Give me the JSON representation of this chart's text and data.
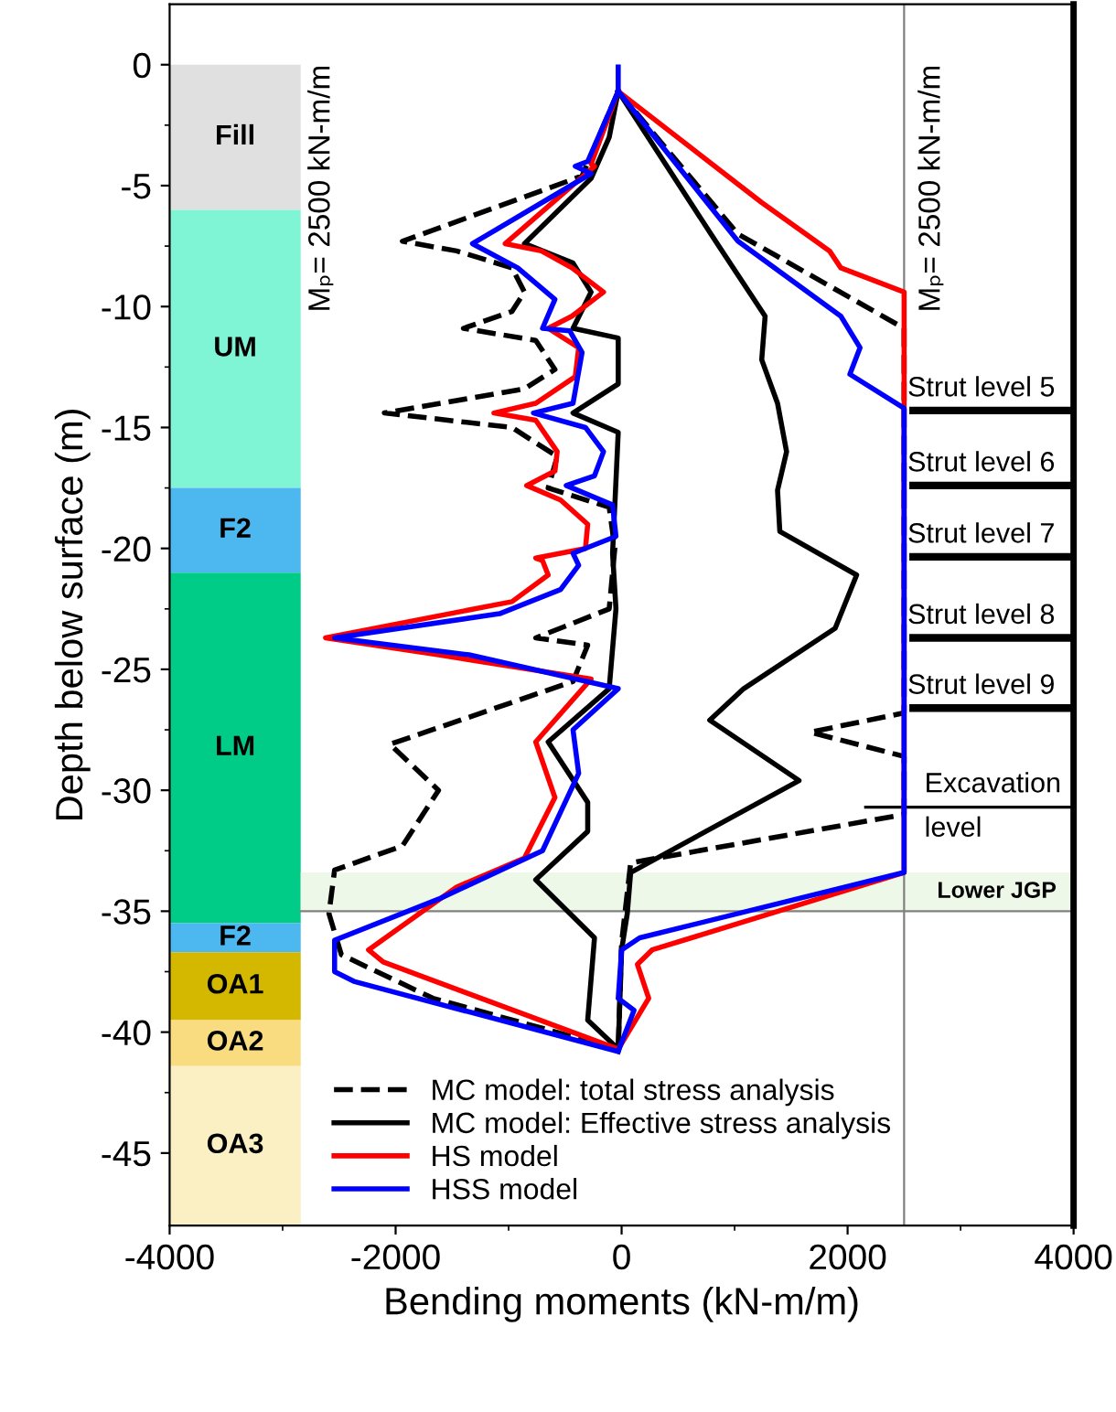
{
  "chart_data": {
    "type": "line",
    "xlabel": "Bending moments (kN-m/m)",
    "ylabel": "Depth below surface (m)",
    "xlim": [
      -4000,
      4000
    ],
    "xticks": [
      -4000,
      -2000,
      0,
      2000,
      4000
    ],
    "ylim": [
      -48,
      2.5
    ],
    "yticks": [
      0,
      -5,
      -10,
      -15,
      -20,
      -25,
      -30,
      -35,
      -40,
      -45
    ],
    "series": [
      {
        "name": "MC model: total stress analysis",
        "color": "#000000",
        "line_style": "dashed",
        "values": [
          -30,
          -350,
          -1940,
          -1460,
          -970,
          -860,
          -970,
          -1400,
          -760,
          -590,
          -860,
          -2100,
          -970,
          -570,
          -650,
          -110,
          -60,
          -110,
          -760,
          -300,
          -430,
          -2050,
          -1620,
          -1940,
          -2540,
          -2590,
          -2480,
          -1670,
          -30
        ],
        "x": [
          -1.1,
          -4.6,
          -7.3,
          -7.7,
          -8.4,
          -9.4,
          -10.2,
          -10.9,
          -11.4,
          -12.6,
          -13.4,
          -14.4,
          -15.0,
          -16.2,
          -17.5,
          -18.3,
          -20.0,
          -22.5,
          -23.7,
          -24.0,
          -25.5,
          -28.1,
          -30.0,
          -32.3,
          -33.3,
          -35.1,
          -36.8,
          -38.6,
          -40.7
        ]
      },
      {
        "color": "#000000",
        "line_style": "dashed",
        "values": [
          -30,
          1030,
          2500,
          2500,
          1670,
          2500,
          2500,
          80,
          0,
          -30
        ],
        "x": [
          -1.1,
          -7.0,
          -10.9,
          -26.8,
          -27.6,
          -28.6,
          -31.0,
          -33.0,
          -36.3,
          -40.7
        ]
      },
      {
        "name": "MC model: Effective stress analysis",
        "color": "#000000",
        "line_style": "solid",
        "values": [
          -30,
          -110,
          -270,
          -860,
          -430,
          -270,
          -430,
          -30,
          -30,
          -430,
          -30,
          -80,
          -50,
          -110,
          -650,
          -300,
          -300,
          -760,
          -240,
          -300,
          -30
        ],
        "x": [
          -1.1,
          -3.0,
          -4.7,
          -7.4,
          -8.2,
          -9.4,
          -10.9,
          -11.3,
          -13.2,
          -14.4,
          -15.2,
          -20.2,
          -22.5,
          -25.8,
          -28.0,
          -30.5,
          -31.7,
          -33.7,
          -36.1,
          -39.5,
          -40.7
        ]
      },
      {
        "color": "#000000",
        "line_style": "solid",
        "values": [
          -30,
          860,
          1270,
          1240,
          1380,
          1460,
          1380,
          1400,
          2080,
          1890,
          1080,
          780,
          1570,
          80,
          50,
          0,
          -30
        ],
        "x": [
          -1.1,
          -7.5,
          -10.4,
          -12.2,
          -14.0,
          -16.0,
          -17.6,
          -19.3,
          -21.1,
          -23.3,
          -25.8,
          -27.1,
          -29.6,
          -33.4,
          -35.1,
          -36.6,
          -40.7
        ]
      },
      {
        "name": "HS model",
        "color": "#ff0000",
        "line_style": "solid",
        "values": [
          -30,
          -270,
          -240,
          -1030,
          -710,
          -440,
          -160,
          -440,
          -650,
          -380,
          -410,
          -760,
          -1130,
          -760,
          -570,
          -590,
          -840,
          -540,
          -300,
          -320,
          -760,
          -700,
          -650,
          -970,
          -2620,
          -1620,
          -270,
          -760,
          -590,
          -860,
          -1460,
          -2240,
          -2110,
          -30
        ],
        "x": [
          -1.1,
          -4.1,
          -4.2,
          -7.4,
          -7.7,
          -8.4,
          -9.4,
          -10.4,
          -10.9,
          -11.7,
          -12.9,
          -14.0,
          -14.4,
          -14.7,
          -16.0,
          -16.8,
          -17.4,
          -18.0,
          -19.0,
          -20.0,
          -20.4,
          -20.5,
          -21.1,
          -22.2,
          -23.7,
          -24.4,
          -25.4,
          -28.0,
          -30.3,
          -32.8,
          -34.0,
          -36.6,
          -37.1,
          -40.7
        ]
      },
      {
        "color": "#ff0000",
        "line_style": "solid",
        "values": [
          -30,
          1240,
          1840,
          1940,
          2500,
          2500,
          270,
          140,
          240,
          -30
        ],
        "x": [
          -1.1,
          -5.7,
          -7.7,
          -8.4,
          -9.4,
          -33.4,
          -36.6,
          -37.2,
          -38.6,
          -40.7
        ]
      },
      {
        "name": "HSS model",
        "color": "#0000ff",
        "line_style": "solid",
        "values": [
          -30,
          -30,
          -300,
          -410,
          -270,
          -1320,
          -920,
          -590,
          -700,
          -460,
          -350,
          -430,
          -780,
          -320,
          -160,
          -240,
          -490,
          -80,
          -50,
          -430,
          -380,
          -540,
          -1080,
          -2540,
          -1350,
          -30,
          -430,
          -380,
          -700,
          -1620,
          -2540,
          -2540,
          -2370,
          -30
        ],
        "x": [
          -0.1,
          -1.1,
          -4.0,
          -4.2,
          -4.5,
          -7.4,
          -8.4,
          -9.7,
          -10.9,
          -11.0,
          -11.9,
          -14.0,
          -14.4,
          -15.0,
          -16.0,
          -17.0,
          -17.4,
          -18.2,
          -19.5,
          -20.2,
          -20.7,
          -21.7,
          -22.7,
          -23.7,
          -24.4,
          -25.8,
          -27.5,
          -29.3,
          -32.5,
          -34.5,
          -36.2,
          -37.5,
          -37.9,
          -40.8
        ]
      },
      {
        "color": "#0000ff",
        "line_style": "solid",
        "values": [
          -30,
          1030,
          1940,
          2110,
          2020,
          2500,
          2500,
          160,
          0,
          -30,
          110,
          -30
        ],
        "x": [
          -1.1,
          -7.3,
          -10.4,
          -11.7,
          -12.8,
          -14.2,
          -33.4,
          -36.1,
          -36.6,
          -38.6,
          -39.1,
          -40.8
        ]
      }
    ],
    "bands": [
      {
        "axis": "y",
        "from": 0,
        "to": -6,
        "label": "Fill",
        "color": "#e0e0e0"
      },
      {
        "axis": "y",
        "from": -6,
        "to": -17.5,
        "label": "UM",
        "color": "#80f5d5"
      },
      {
        "axis": "y",
        "from": -17.5,
        "to": -21,
        "label": "F2",
        "color": "#4db8f0"
      },
      {
        "axis": "y",
        "from": -21,
        "to": -35.5,
        "label": "LM",
        "color": "#00cc88"
      },
      {
        "axis": "y",
        "from": -35.5,
        "to": -36.7,
        "label": "F2",
        "color": "#4db8f0"
      },
      {
        "axis": "y",
        "from": -36.7,
        "to": -39.5,
        "label": "OA1",
        "color": "#d4b800"
      },
      {
        "axis": "y",
        "from": -39.5,
        "to": -41.4,
        "label": "OA2",
        "color": "#f9dc80"
      },
      {
        "axis": "y",
        "from": -41.4,
        "to": -48,
        "label": "OA3",
        "color": "#fbefc4"
      },
      {
        "axis": "y",
        "from": -33.4,
        "to": -35,
        "label": "Lower JGP",
        "color": "#eef8e8"
      }
    ],
    "ref_lines": [
      {
        "axis": "x",
        "value": 2500,
        "label": "Mₚ= 2500 kN-m/m",
        "color": "#808080"
      },
      {
        "axis": "y",
        "value": -35,
        "color": "#808080"
      },
      {
        "axis": "y",
        "value": -14.3,
        "label": "Strut level 5",
        "color": "#000000"
      },
      {
        "axis": "y",
        "value": -17.4,
        "label": "Strut level 6",
        "color": "#000000"
      },
      {
        "axis": "y",
        "value": -20.35,
        "label": "Strut level 7",
        "color": "#000000"
      },
      {
        "axis": "y",
        "value": -23.7,
        "label": "Strut level 8",
        "color": "#000000"
      },
      {
        "axis": "y",
        "value": -26.6,
        "label": "Strut level 9",
        "color": "#000000"
      },
      {
        "axis": "y",
        "value": -30.7,
        "label": "Excavation\nlevel",
        "color": "#000000"
      }
    ],
    "annotations": [
      "Mₚ= 2500 kN-m/m"
    ],
    "legend": "bottom",
    "grid": false,
    "orientation": "horizontal"
  }
}
